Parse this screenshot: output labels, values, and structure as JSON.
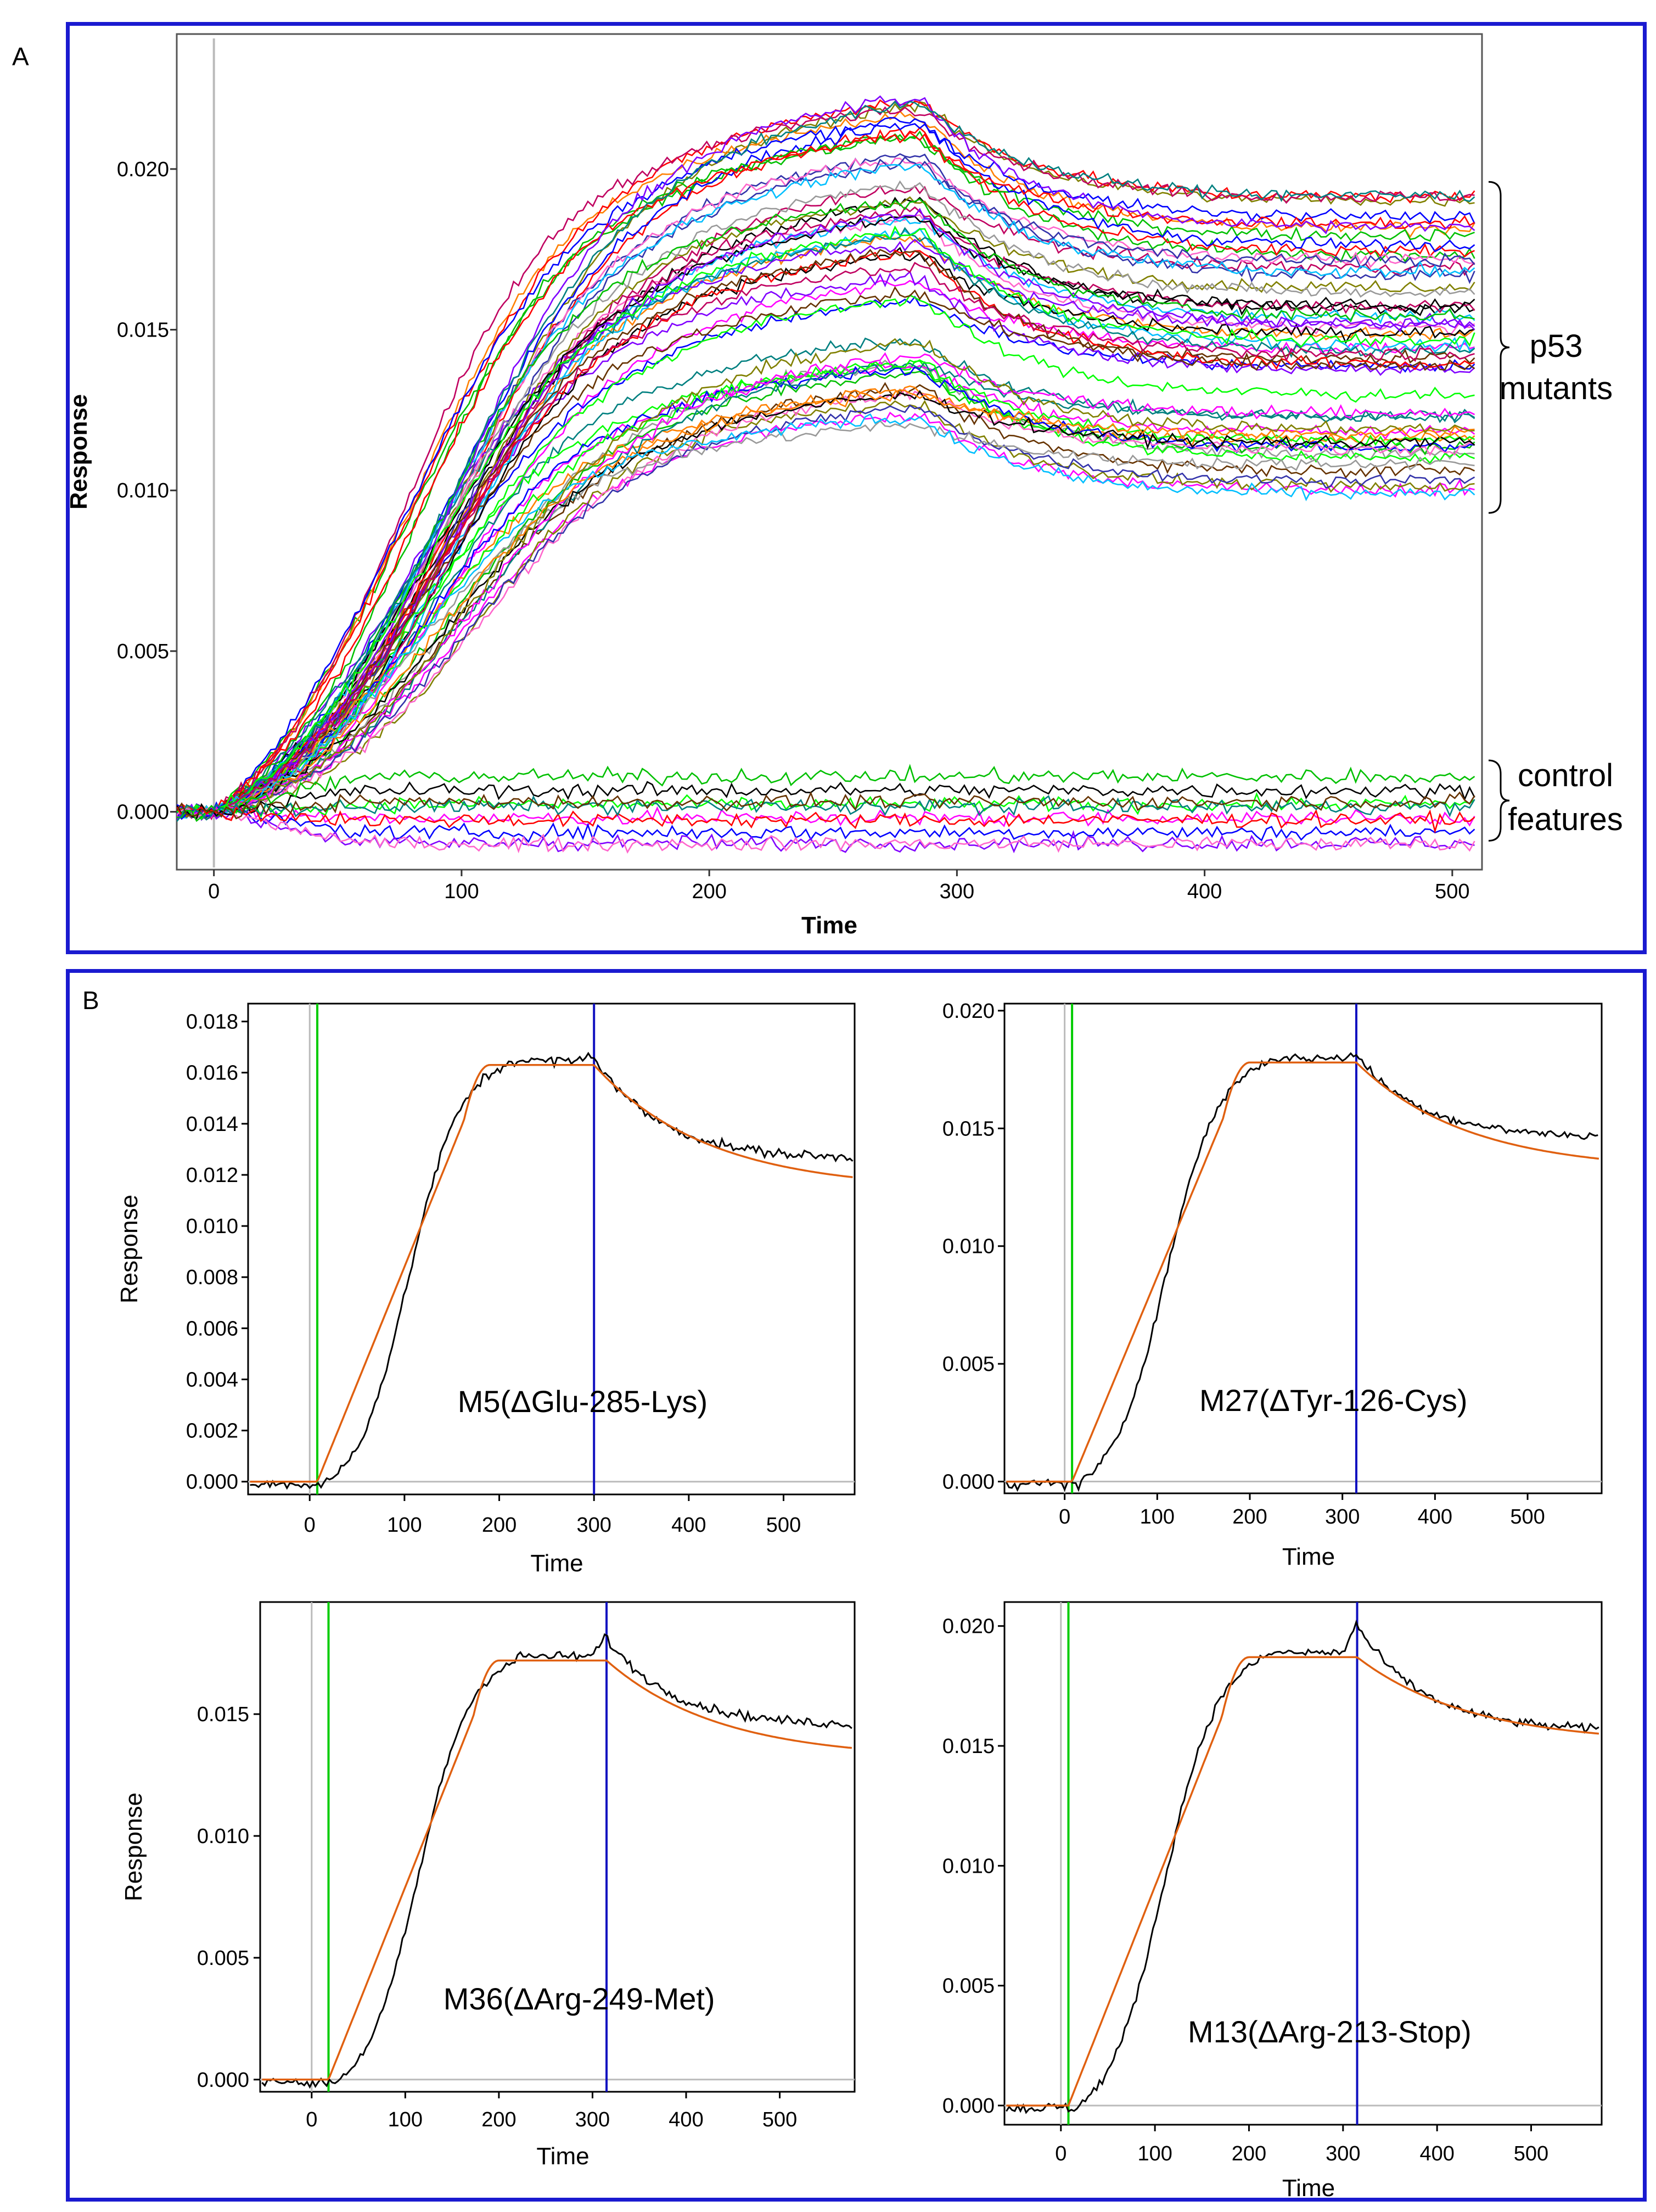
{
  "figure": {
    "panel_a_letter": "A",
    "panel_b_letter": "B",
    "frame_color": "#1a1ad0"
  },
  "chart_data": [
    {
      "id": "panelA",
      "type": "line",
      "title": "",
      "xlabel": "Time",
      "ylabel": "Response",
      "xlim": [
        -15,
        512
      ],
      "ylim": [
        -0.0018,
        0.0242
      ],
      "xticks": [
        0,
        100,
        200,
        300,
        400,
        500
      ],
      "yticks": [
        0.0,
        0.005,
        0.01,
        0.015,
        0.02
      ],
      "ytick_labels": [
        "0.000",
        "0.005",
        "0.010",
        "0.015",
        "0.020"
      ],
      "grid": false,
      "injection_marker_x": 0,
      "annotations": [
        {
          "text": "p53",
          "group": "mutants"
        },
        {
          "text": "mutants",
          "group": "mutants"
        },
        {
          "text": "control",
          "group": "controls"
        },
        {
          "text": "features",
          "group": "controls"
        }
      ],
      "series_groups": {
        "mutants": {
          "count": 60,
          "curve_shape": "association_dissociation",
          "peak_time": 270,
          "peak_range": [
            0.0115,
            0.0215
          ],
          "plateau_range": [
            0.0095,
            0.0195
          ],
          "end_time": 510
        },
        "controls": {
          "count": 10,
          "curve_shape": "flat",
          "level_range": [
            -0.001,
            0.0013
          ]
        }
      },
      "palette": [
        "#000000",
        "#ff00ff",
        "#ff8000",
        "#00c000",
        "#0000ff",
        "#00bfff",
        "#ff0000",
        "#8000ff",
        "#808000",
        "#008080",
        "#00ff00",
        "#c00060",
        "#663300",
        "#ff66cc",
        "#3333aa",
        "#999999"
      ]
    },
    {
      "id": "M5",
      "type": "line",
      "label": "M5(ΔGlu-285-Lys)",
      "xlabel": "Time",
      "ylabel": "Response",
      "xlim": [
        -65,
        575
      ],
      "ylim": [
        -0.0005,
        0.0187
      ],
      "xticks": [
        0,
        100,
        200,
        300,
        400,
        500
      ],
      "yticks": [
        0.0,
        0.002,
        0.004,
        0.006,
        0.008,
        0.01,
        0.012,
        0.014,
        0.016,
        0.018
      ],
      "ytick_labels": [
        "0.000",
        "0.002",
        "0.004",
        "0.006",
        "0.008",
        "0.010",
        "0.012",
        "0.014",
        "0.016",
        "0.018"
      ],
      "association_start": 8,
      "dissociation_start": 300,
      "plateau": 0.0163,
      "ramp_end": 190,
      "end_value": 0.0119,
      "data_end_value": 0.0126,
      "data_peak": 0.0166,
      "fit_color": "#e06010",
      "data_color": "#000000",
      "green_line_color": "#00cc00",
      "blue_line_color": "#1010c0",
      "show_ylabel": true
    },
    {
      "id": "M27",
      "type": "line",
      "label": "M27(ΔTyr-126-Cys)",
      "xlabel": "Time",
      "ylabel": "",
      "xlim": [
        -65,
        580
      ],
      "ylim": [
        -0.0005,
        0.0203
      ],
      "xticks": [
        0,
        100,
        200,
        300,
        400,
        500
      ],
      "yticks": [
        0.0,
        0.005,
        0.01,
        0.015,
        0.02
      ],
      "ytick_labels": [
        "0.000",
        "0.005",
        "0.010",
        "0.015",
        "0.020"
      ],
      "association_start": 8,
      "dissociation_start": 315,
      "plateau": 0.0178,
      "ramp_end": 200,
      "end_value": 0.0137,
      "data_end_value": 0.0146,
      "data_peak": 0.0181,
      "fit_color": "#e06010",
      "data_color": "#000000",
      "green_line_color": "#00cc00",
      "blue_line_color": "#1010c0",
      "show_ylabel": false
    },
    {
      "id": "M36",
      "type": "line",
      "label": "M36(ΔArg-249-Met)",
      "xlabel": "Time",
      "ylabel": "Response",
      "xlim": [
        -55,
        580
      ],
      "ylim": [
        -0.0005,
        0.0196
      ],
      "xticks": [
        0,
        100,
        200,
        300,
        400,
        500
      ],
      "yticks": [
        0.0,
        0.005,
        0.01,
        0.015
      ],
      "ytick_labels": [
        "0.000",
        "0.005",
        "0.010",
        "0.015"
      ],
      "association_start": 18,
      "dissociation_start": 315,
      "plateau": 0.0172,
      "ramp_end": 200,
      "end_value": 0.0136,
      "data_end_value": 0.0145,
      "data_peak": 0.0181,
      "fit_color": "#e06010",
      "data_color": "#000000",
      "green_line_color": "#00cc00",
      "blue_line_color": "#1010c0",
      "show_ylabel": true
    },
    {
      "id": "M13",
      "type": "line",
      "label": "M13(ΔArg-213-Stop)",
      "xlabel": "Time",
      "ylabel": "",
      "xlim": [
        -60,
        575
      ],
      "ylim": [
        -0.0008,
        0.021
      ],
      "xticks": [
        0,
        100,
        200,
        300,
        400,
        500
      ],
      "yticks": [
        0.0,
        0.005,
        0.01,
        0.015,
        0.02
      ],
      "ytick_labels": [
        "0.000",
        "0.005",
        "0.010",
        "0.015",
        "0.020"
      ],
      "association_start": 8,
      "dissociation_start": 315,
      "plateau": 0.0187,
      "ramp_end": 200,
      "end_value": 0.0155,
      "data_end_value": 0.0156,
      "data_peak": 0.02,
      "fit_color": "#e06010",
      "data_color": "#000000",
      "green_line_color": "#00cc00",
      "blue_line_color": "#1010c0",
      "show_ylabel": false
    }
  ]
}
